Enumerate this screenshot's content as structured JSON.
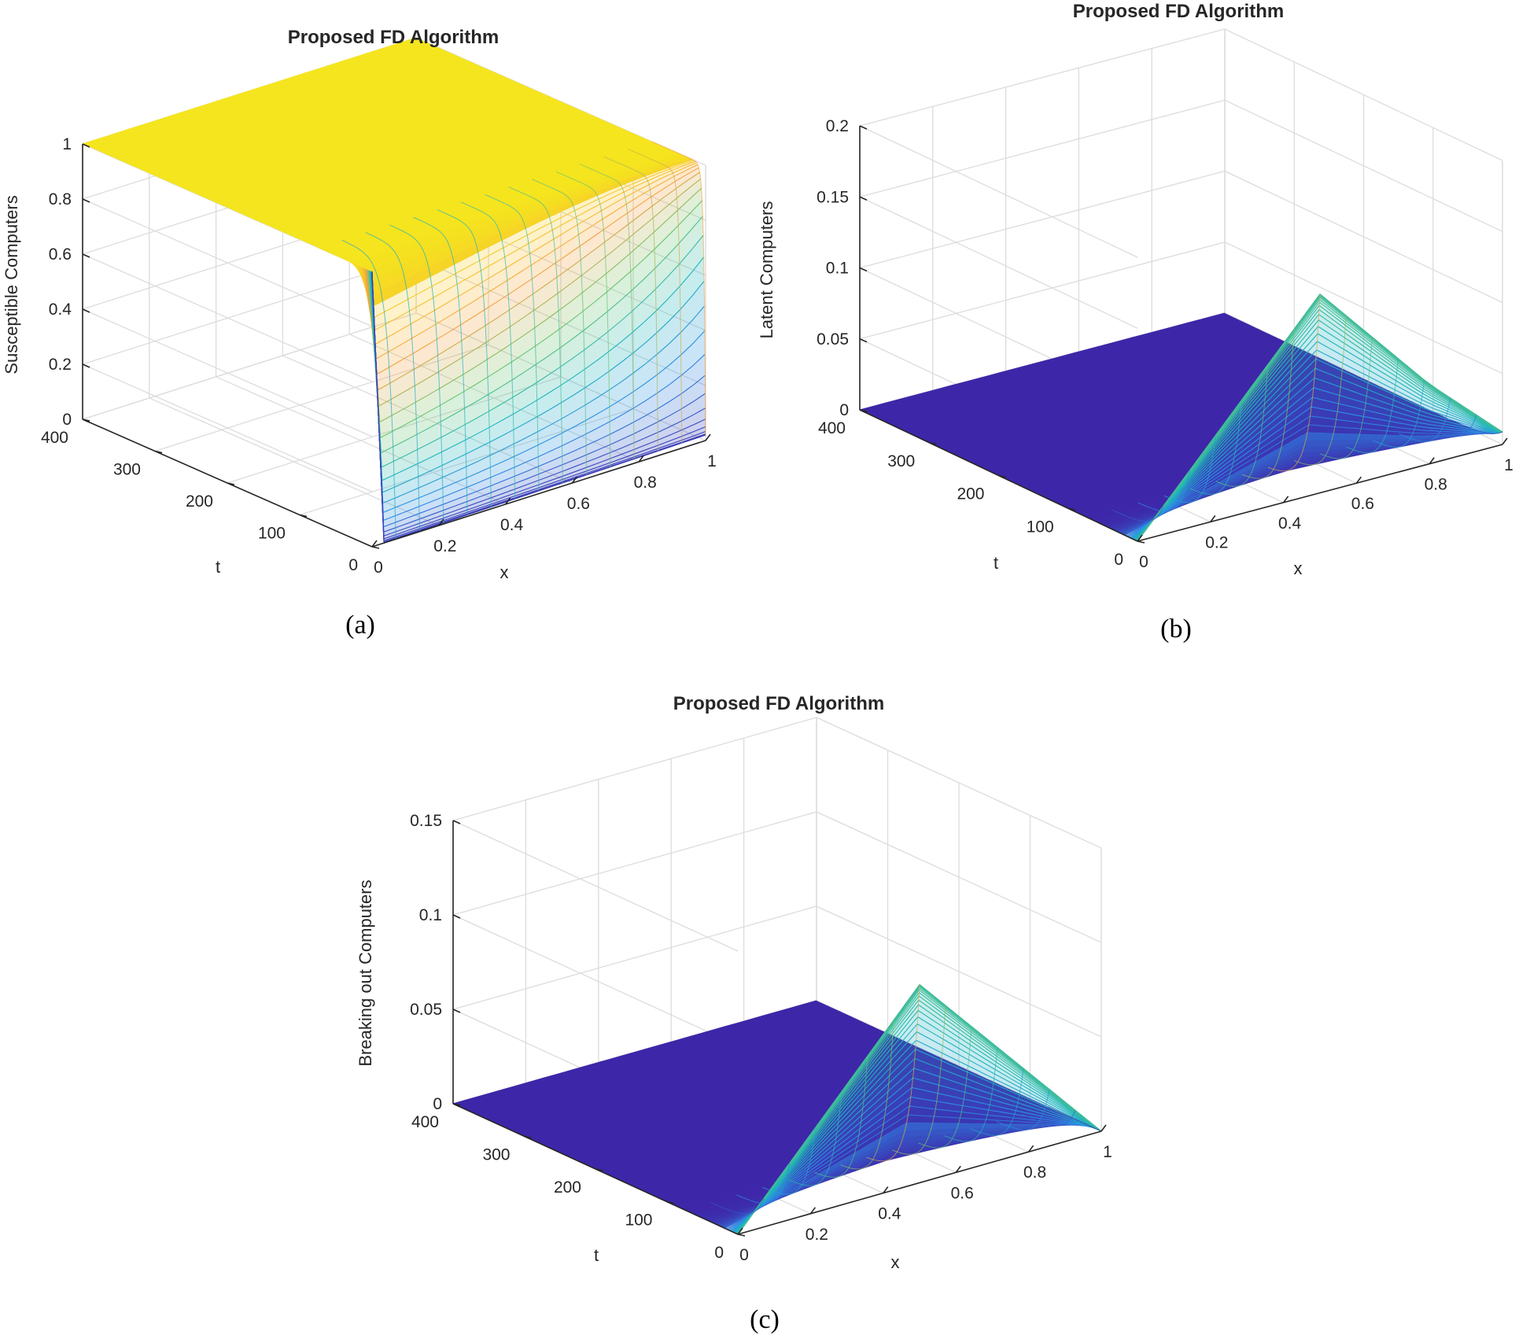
{
  "figure": {
    "caption_labels": [
      "(a)",
      "(b)",
      "(c)"
    ]
  },
  "chart_data": [
    {
      "type": "surface",
      "panel": "(a)",
      "title": "Proposed FD Algorithm",
      "xlabel": "x",
      "ylabel": "t",
      "zlabel": "Susceptible Computers",
      "xlim": [
        0,
        1
      ],
      "ylim": [
        0,
        400
      ],
      "zlim": [
        0,
        1
      ],
      "x_ticks": [
        "0",
        "0.2",
        "0.4",
        "0.6",
        "0.8",
        "1"
      ],
      "y_ticks": [
        "0",
        "100",
        "200",
        "300",
        "400"
      ],
      "z_ticks": [
        "0",
        "0.2",
        "0.4",
        "0.6",
        "0.8",
        "1"
      ],
      "colormap": [
        "#3e26a8",
        "#2d8ce6",
        "#1fb6bb",
        "#6fc66b",
        "#f9a242",
        "#f5e51e"
      ],
      "description": "S(x,t): equals 1 at x=0 for all t; stays near 1 for t > 50; rises sharply from about 0 to 1 during the first time steps near x>0."
    },
    {
      "type": "surface",
      "panel": "(b)",
      "title": "Proposed FD Algorithm",
      "xlabel": "x",
      "ylabel": "t",
      "zlabel": "Latent Computers",
      "xlim": [
        0,
        1
      ],
      "ylim": [
        0,
        400
      ],
      "zlim": [
        0,
        0.2
      ],
      "x_ticks": [
        "0",
        "0.2",
        "0.4",
        "0.6",
        "0.8",
        "1"
      ],
      "y_ticks": [
        "100",
        "200",
        "300",
        "400"
      ],
      "y_zero_tick": "0",
      "z_ticks": [
        "0",
        "0.05",
        "0.1",
        "0.15",
        "0.2"
      ],
      "peak": {
        "x": 0.5,
        "t": 0,
        "value": 0.14
      },
      "description": "L(x,t): triangular initial profile peaking at x=0.5 with value about 0.14, decaying quickly to near 0 for later t."
    },
    {
      "type": "surface",
      "panel": "(c)",
      "title": "Proposed FD Algorithm",
      "xlabel": "x",
      "ylabel": "t",
      "zlabel": "Breaking out Computers",
      "xlim": [
        0,
        1
      ],
      "ylim": [
        0,
        400
      ],
      "zlim": [
        0,
        0.15
      ],
      "x_ticks": [
        "0",
        "0.2",
        "0.4",
        "0.6",
        "0.8",
        "1"
      ],
      "y_ticks": [
        "100",
        "200",
        "300",
        "400"
      ],
      "y_zero_tick": "0",
      "z_ticks": [
        "0",
        "0.05",
        "0.1",
        "0.15"
      ],
      "peak": {
        "x": 0.5,
        "t": 0,
        "value": 0.105
      },
      "description": "B(x,t): triangular initial profile peaking at x=0.5 with value about 0.105, decaying quickly to near 0 for later t."
    }
  ]
}
